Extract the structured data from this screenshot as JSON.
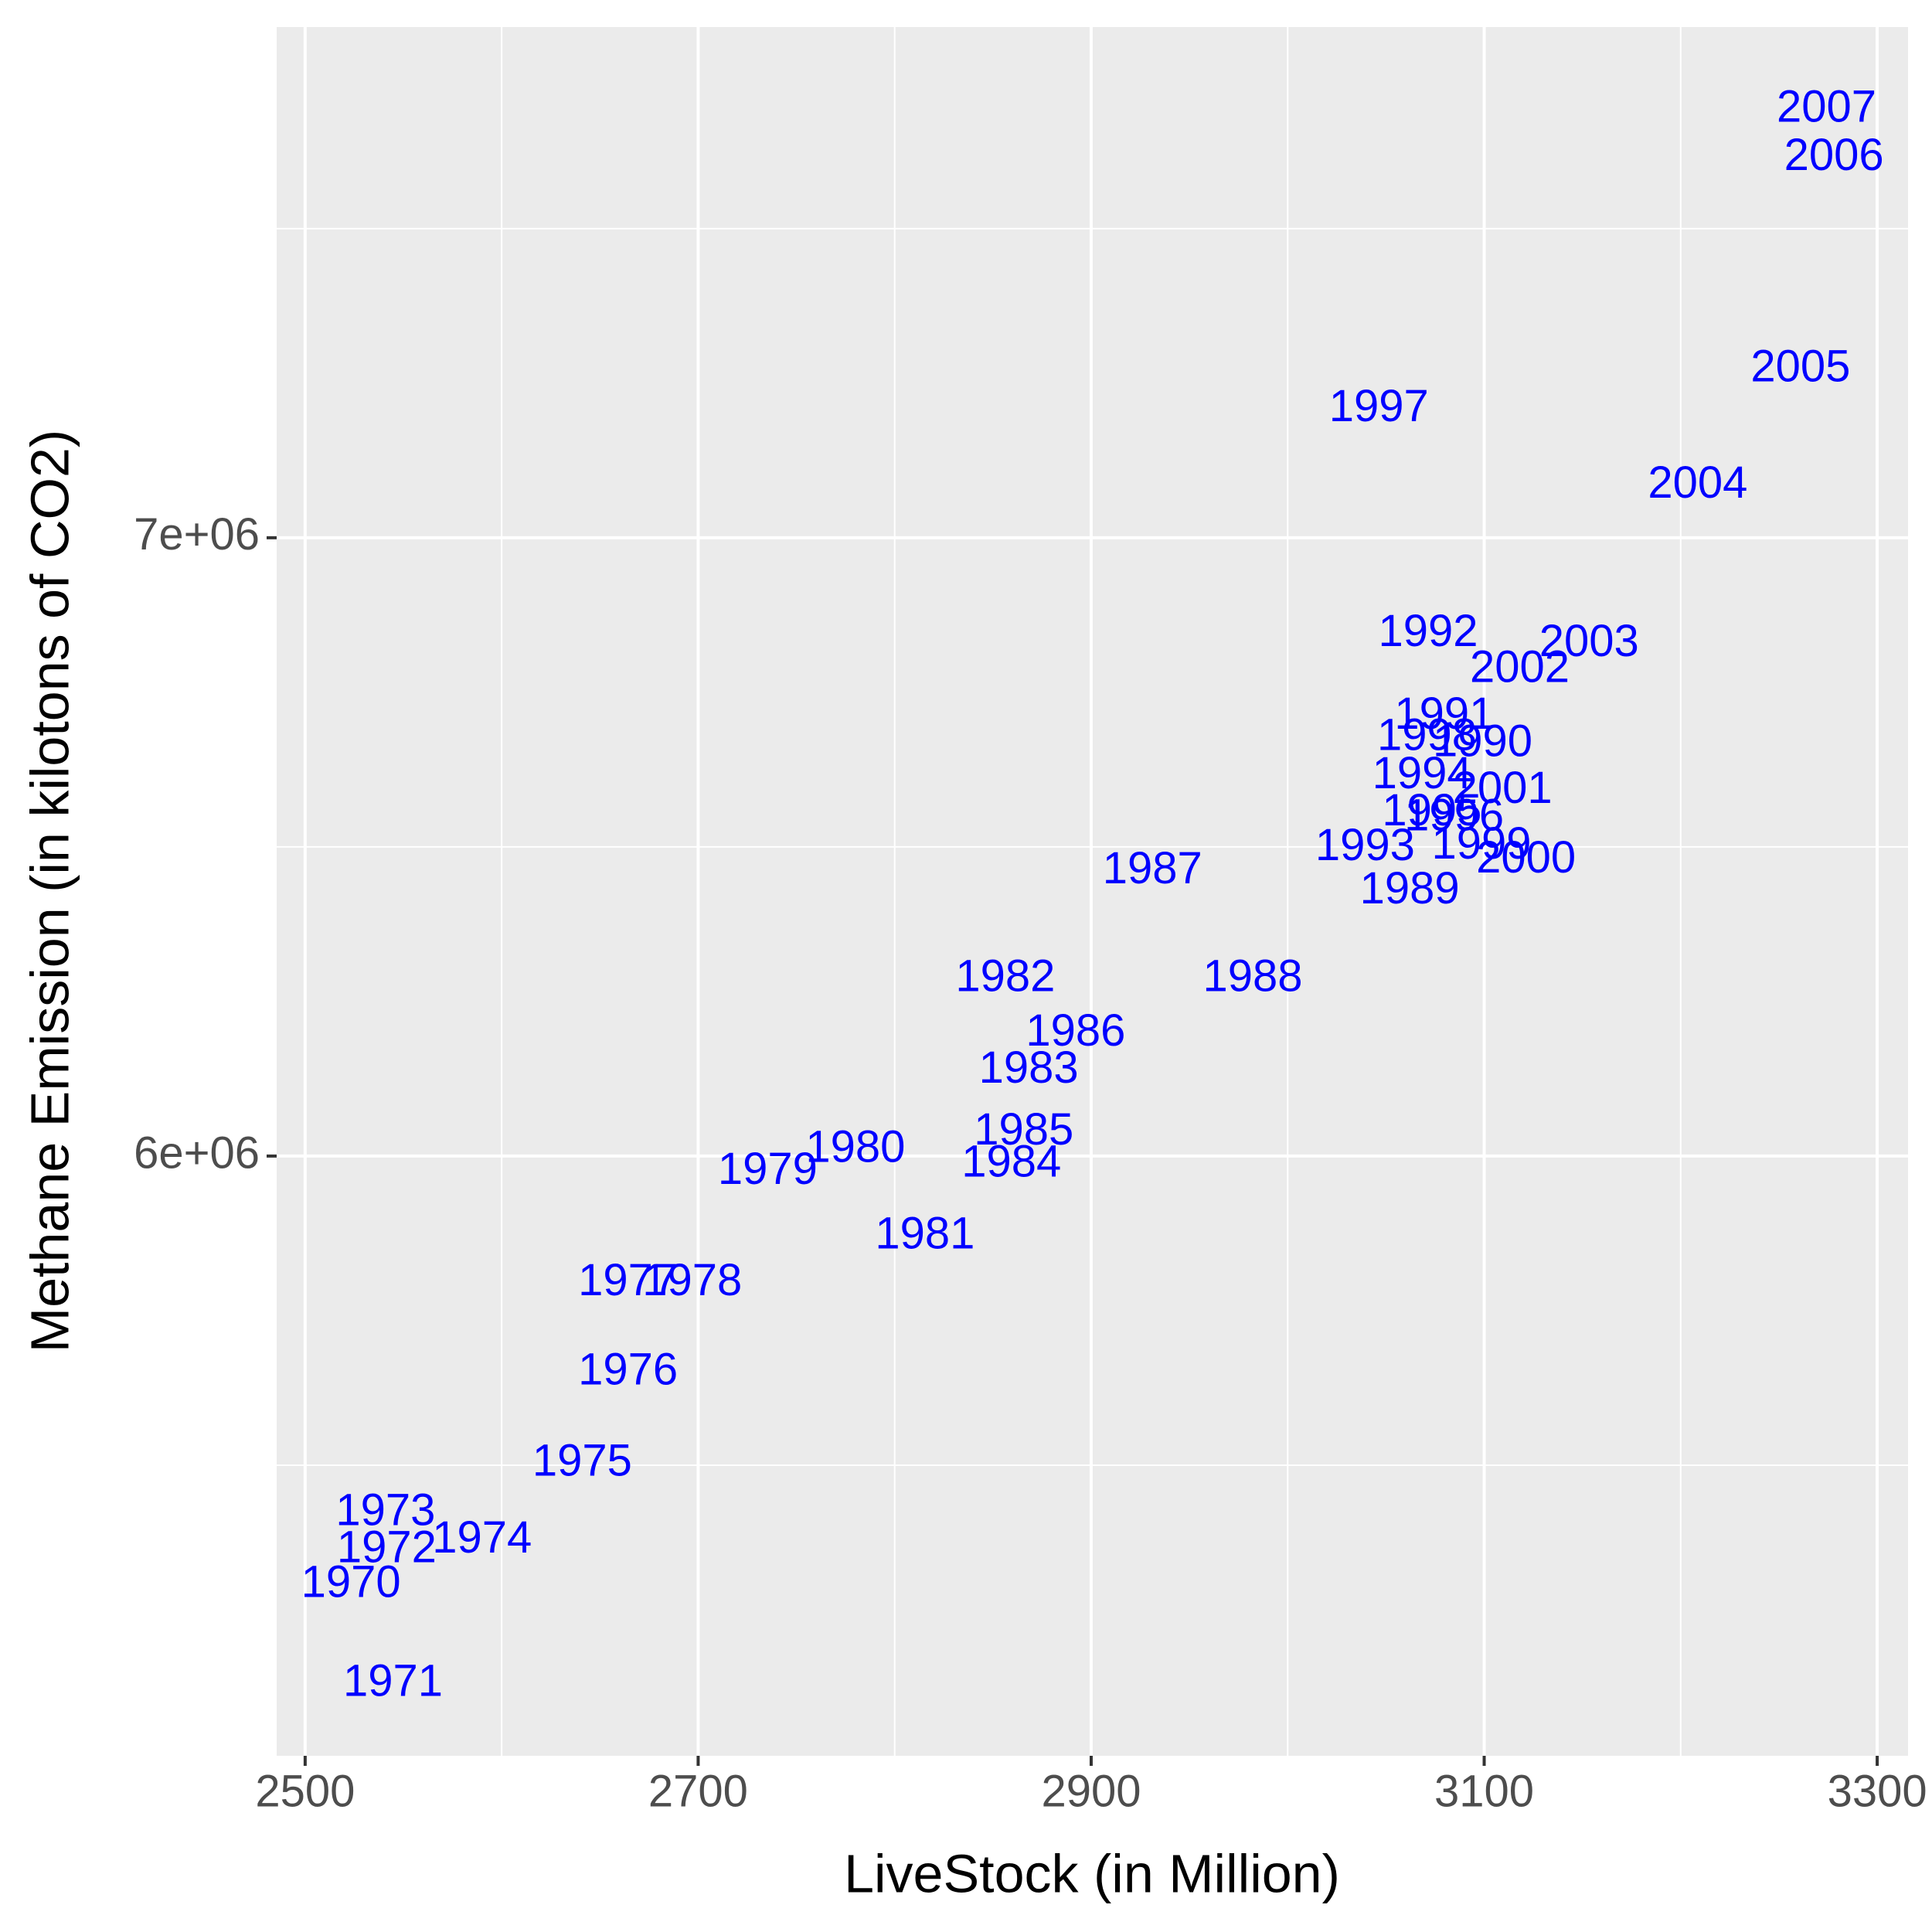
{
  "chart_data": {
    "type": "scatter-text",
    "x_label": "LiveStock (in Million)",
    "y_label": "Methane Emission (in kilotons of CO2)",
    "color": "#0000ff",
    "labels": [
      "1970",
      "1971",
      "1972",
      "1973",
      "1974",
      "1975",
      "1976",
      "1977",
      "1978",
      "1979",
      "1980",
      "1981",
      "1982",
      "1983",
      "1984",
      "1985",
      "1986",
      "1987",
      "1988",
      "1989",
      "1990",
      "1991",
      "1992",
      "1993",
      "1994",
      "1995",
      "1996",
      "1997",
      "1998",
      "1999",
      "2000",
      "2001",
      "2002",
      "2003",
      "2004",
      "2005",
      "2006",
      "2007"
    ],
    "x": [
      2523.3,
      2544.7,
      2541.5,
      2540.9,
      2590,
      2641,
      2664.3,
      2664.3,
      2697,
      2735.4,
      2780,
      2815.4,
      2856.3,
      2868.2,
      2859.4,
      2865.7,
      2892.1,
      2931.2,
      2982.2,
      3062.1,
      3099.2,
      3079.7,
      3071.5,
      3039.4,
      3068.4,
      3073.4,
      3084.7,
      3046.4,
      3070.9,
      3098.6,
      3121.3,
      3109.3,
      3118.1,
      3153.4,
      3208.7,
      3261,
      3278,
      3274.2
    ],
    "y": [
      5306000,
      5146000,
      5362000,
      5422000,
      5378000,
      5502000,
      5650000,
      5794000,
      5794000,
      5974000,
      6010000,
      5870000,
      6286000,
      6138000,
      5986000,
      6038000,
      6198000,
      6460000,
      6286000,
      6428000,
      6666000,
      6710000,
      6844000,
      6498000,
      6614000,
      6554000,
      6546000,
      7208000,
      6676000,
      6500000,
      6478000,
      6590000,
      6786000,
      6828000,
      7084000,
      7272000,
      7614000,
      7692000
    ],
    "xlim": [
      2485.5,
      3315.7
    ],
    "ylim": [
      5030000,
      7826000
    ],
    "xticks": [
      2500,
      2700,
      2900,
      3100,
      3300
    ],
    "yticks": [
      {
        "value": 6000000,
        "label": "6e+06"
      },
      {
        "value": 7000000,
        "label": "7e+06"
      }
    ],
    "grid": true
  }
}
